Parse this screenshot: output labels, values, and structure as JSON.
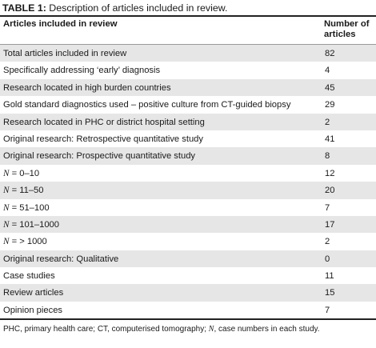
{
  "table": {
    "caption_prefix": "TABLE 1:",
    "caption_text": " Description of articles included in review.",
    "header": {
      "label": "Articles included in review",
      "value": "Number of articles"
    },
    "rows": [
      {
        "label": "Total articles included in review",
        "value": "82"
      },
      {
        "label": "Specifically addressing ‘early’ diagnosis",
        "value": "4"
      },
      {
        "label": "Research located in high burden countries",
        "value": "45"
      },
      {
        "label": "Gold standard diagnostics used – positive culture from CT-guided biopsy",
        "value": "29"
      },
      {
        "label": "Research located in PHC or district hospital setting",
        "value": "2"
      },
      {
        "label": "Original research: Retrospective quantitative study",
        "value": "41"
      },
      {
        "label": "Original research: Prospective quantitative study",
        "value": "8"
      },
      {
        "label_n": "N",
        "label_rest": " = 0–10",
        "value": "12"
      },
      {
        "label_n": "N",
        "label_rest": " = 11–50",
        "value": "20"
      },
      {
        "label_n": "N",
        "label_rest": " = 51–100",
        "value": "7"
      },
      {
        "label_n": "N",
        "label_rest": " = 101–1000",
        "value": "17"
      },
      {
        "label_n": "N",
        "label_rest": " = > 1000",
        "value": "2"
      },
      {
        "label": "Original research: Qualitative",
        "value": "0"
      },
      {
        "label": "Case studies",
        "value": "11"
      },
      {
        "label": "Review articles",
        "value": "15"
      },
      {
        "label": "Opinion pieces",
        "value": "7"
      }
    ],
    "footnote": {
      "part1": "PHC, primary health care; CT, computerised tomography; ",
      "n": "N",
      "part2": ", case numbers in each study."
    }
  }
}
